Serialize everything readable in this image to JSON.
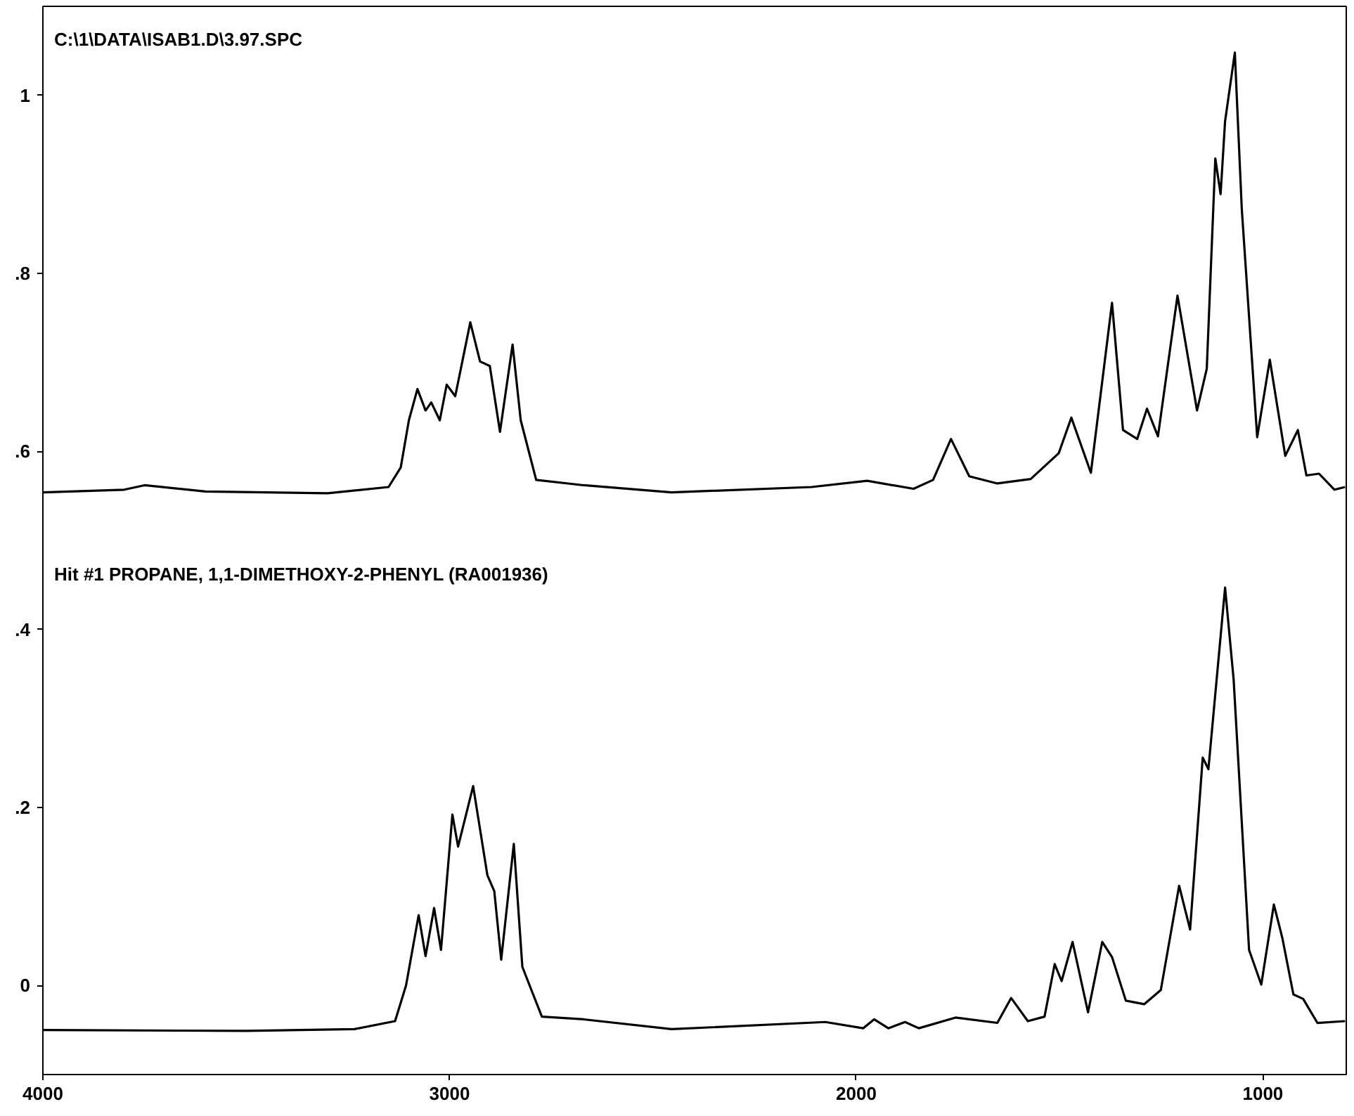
{
  "chart_data": {
    "type": "line",
    "xlim": [
      4000,
      795
    ],
    "xticks": [
      4000,
      3000,
      2000,
      1000
    ],
    "ylim": [
      -0.1,
      1.1
    ],
    "yticks": [
      {
        "value": 0,
        "label": "0"
      },
      {
        "value": 0.2,
        "label": ".2"
      },
      {
        "value": 0.4,
        "label": ".4"
      },
      {
        "value": 0.6,
        "label": ".6"
      },
      {
        "value": 0.8,
        "label": ".8"
      },
      {
        "value": 1,
        "label": "1"
      }
    ],
    "annotations": [
      "C:\\1\\DATA\\ISAB1.D\\3.97.SPC",
      "Hit #1 PROPANE, 1,1-DIMETHOXY-2-PHENYL (RA001936)"
    ],
    "line_style": "solid",
    "series": [
      {
        "color": "#000000",
        "x": [
          4000,
          3800,
          3750,
          3600,
          3300,
          3150,
          3120,
          3100,
          3079,
          3059,
          3045,
          3024,
          3007,
          2986,
          2949,
          2925,
          2901,
          2876,
          2845,
          2825,
          2787,
          2670,
          2454,
          2110,
          1973,
          1859,
          1811,
          1767,
          1722,
          1653,
          1571,
          1502,
          1471,
          1423,
          1371,
          1344,
          1309,
          1285,
          1258,
          1210,
          1162,
          1138,
          1117,
          1104,
          1093,
          1069,
          1052,
          1014,
          983,
          945,
          914,
          893,
          862,
          824,
          798
        ],
        "values": [
          0.554,
          0.557,
          0.562,
          0.555,
          0.553,
          0.56,
          0.582,
          0.635,
          0.67,
          0.646,
          0.655,
          0.635,
          0.675,
          0.662,
          0.745,
          0.701,
          0.696,
          0.622,
          0.72,
          0.635,
          0.568,
          0.562,
          0.554,
          0.56,
          0.567,
          0.558,
          0.568,
          0.614,
          0.572,
          0.564,
          0.569,
          0.598,
          0.638,
          0.576,
          0.767,
          0.624,
          0.614,
          0.648,
          0.617,
          0.775,
          0.646,
          0.693,
          0.929,
          0.889,
          0.971,
          1.048,
          0.873,
          0.616,
          0.703,
          0.595,
          0.624,
          0.573,
          0.575,
          0.557,
          0.56
        ]
      },
      {
        "color": "#000000",
        "x": [
          4000,
          3500,
          3234,
          3134,
          3107,
          3076,
          3059,
          3038,
          3021,
          2993,
          2979,
          2942,
          2907,
          2890,
          2873,
          2842,
          2821,
          2773,
          2670,
          2454,
          2076,
          1983,
          1956,
          1921,
          1880,
          1846,
          1756,
          1653,
          1619,
          1578,
          1537,
          1512,
          1495,
          1468,
          1430,
          1395,
          1371,
          1337,
          1292,
          1251,
          1206,
          1179,
          1148,
          1134,
          1093,
          1072,
          1034,
          1004,
          973,
          952,
          925,
          901,
          866,
          798
        ],
        "values": [
          -0.05,
          -0.051,
          -0.049,
          -0.04,
          0.0,
          0.079,
          0.033,
          0.087,
          0.04,
          0.192,
          0.156,
          0.224,
          0.124,
          0.106,
          0.029,
          0.159,
          0.021,
          -0.035,
          -0.038,
          -0.049,
          -0.041,
          -0.048,
          -0.038,
          -0.048,
          -0.041,
          -0.048,
          -0.036,
          -0.042,
          -0.014,
          -0.04,
          -0.035,
          0.024,
          0.005,
          0.049,
          -0.03,
          0.049,
          0.032,
          -0.017,
          -0.021,
          -0.005,
          0.112,
          0.063,
          0.256,
          0.243,
          0.447,
          0.344,
          0.04,
          0.001,
          0.091,
          0.053,
          -0.01,
          -0.015,
          -0.042,
          -0.04
        ]
      }
    ]
  }
}
